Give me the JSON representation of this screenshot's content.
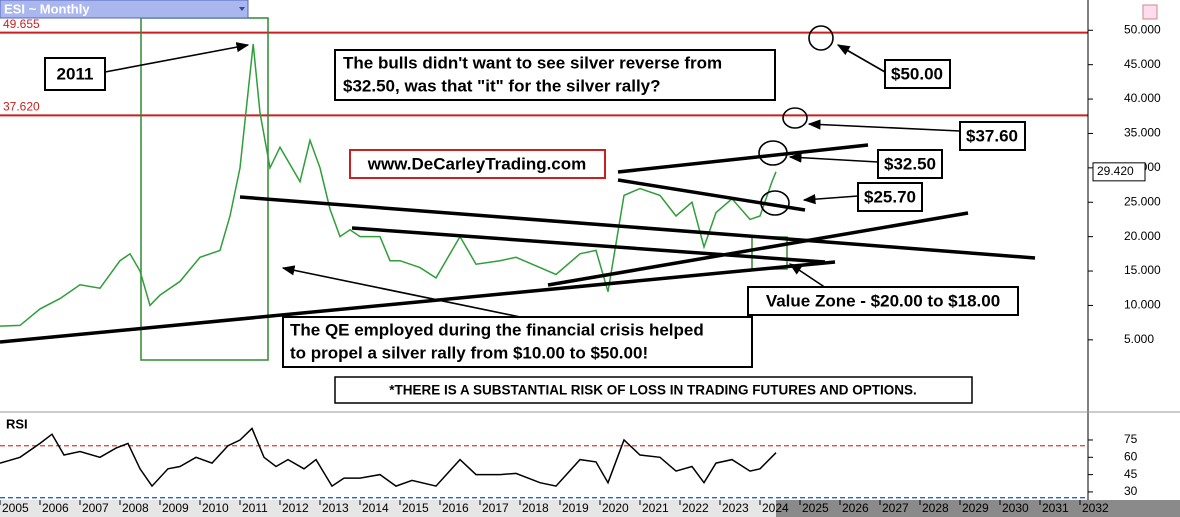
{
  "chart_data": [
    {
      "type": "line",
      "title": "ESI ~ Monthly",
      "color": "#2f9e3a",
      "x": [
        2005.0,
        2005.5,
        2006.0,
        2006.5,
        2007.0,
        2007.5,
        2008.0,
        2008.25,
        2008.5,
        2008.75,
        2009.0,
        2009.5,
        2010.0,
        2010.5,
        2010.75,
        2011.0,
        2011.33,
        2011.5,
        2011.75,
        2012.0,
        2012.5,
        2012.75,
        2013.0,
        2013.25,
        2013.5,
        2013.75,
        2014.0,
        2014.5,
        2014.75,
        2015.0,
        2015.5,
        2015.9,
        2016.5,
        2016.9,
        2017.5,
        2017.9,
        2018.5,
        2018.9,
        2019.5,
        2019.9,
        2020.2,
        2020.6,
        2021.0,
        2021.5,
        2021.9,
        2022.3,
        2022.6,
        2022.9,
        2023.3,
        2023.75,
        2024.0,
        2024.3,
        2024.4
      ],
      "values": [
        7.0,
        7.1,
        9.5,
        11.0,
        13.0,
        12.5,
        16.5,
        17.5,
        15.0,
        10.0,
        11.5,
        13.5,
        17.0,
        18.0,
        23.0,
        30.0,
        48.0,
        38.0,
        30.0,
        33.0,
        28.0,
        34.0,
        30.0,
        24.0,
        20.0,
        21.0,
        20.0,
        20.0,
        16.5,
        16.5,
        15.5,
        14.0,
        20.0,
        16.0,
        16.5,
        17.0,
        15.5,
        14.5,
        17.5,
        18.0,
        12.0,
        26.0,
        27.0,
        26.0,
        23.0,
        25.0,
        18.5,
        23.5,
        25.5,
        22.5,
        23.0,
        28.0,
        29.42
      ],
      "last_value": {
        "value": 29.42,
        "label": "29.420"
      },
      "xlim": [
        2005,
        2032.2
      ],
      "xticks": [
        2005,
        2006,
        2007,
        2008,
        2009,
        2010,
        2011,
        2012,
        2013,
        2014,
        2015,
        2016,
        2017,
        2018,
        2019,
        2020,
        2021,
        2022,
        2023,
        2024,
        2025,
        2026,
        2027,
        2028,
        2029,
        2030,
        2031,
        2032
      ],
      "ylim": [
        -5.2,
        54.4
      ],
      "yticks": [
        {
          "value": 5,
          "label": "5.000"
        },
        {
          "value": 10,
          "label": "10.000"
        },
        {
          "value": 15,
          "label": "15.000"
        },
        {
          "value": 20,
          "label": "20.000"
        },
        {
          "value": 25,
          "label": "25.000"
        },
        {
          "value": 30,
          "label": "30.000"
        },
        {
          "value": 35,
          "label": "35.000"
        },
        {
          "value": 40,
          "label": "40.000"
        },
        {
          "value": 45,
          "label": "45.000"
        },
        {
          "value": 50,
          "label": "50.000"
        }
      ],
      "levels": [
        49.655,
        {
          "value": 37.62,
          "label": "37.620"
        }
      ],
      "level_color": "#cc1f1f",
      "annotations": [
        "2011",
        [
          "The bulls didn't want to see silver reverse from",
          "$32.50, was that \"it\" for the silver rally?"
        ],
        "www.DeCarleyTrading.com",
        "$50.00",
        "$37.60",
        "$32.50",
        "$25.70",
        "Value Zone - $20.00 to $18.00",
        [
          "The QE employed during the financial crisis helped",
          "to propel a silver rally from $10.00 to $50.00!"
        ],
        "*THERE IS A SUBSTANTIAL RISK OF LOSS IN TRADING FUTURES AND OPTIONS."
      ]
    },
    {
      "type": "line",
      "title": "RSI",
      "color": "#000000",
      "x": [
        2005.0,
        2005.5,
        2006.0,
        2006.3,
        2006.6,
        2007.0,
        2007.5,
        2007.9,
        2008.2,
        2008.5,
        2008.8,
        2009.2,
        2009.5,
        2009.9,
        2010.3,
        2010.7,
        2011.0,
        2011.3,
        2011.6,
        2011.9,
        2012.2,
        2012.6,
        2012.9,
        2013.3,
        2013.6,
        2014.0,
        2014.5,
        2014.9,
        2015.3,
        2015.9,
        2016.5,
        2016.9,
        2017.5,
        2017.9,
        2018.5,
        2018.9,
        2019.5,
        2019.9,
        2020.2,
        2020.6,
        2021.0,
        2021.5,
        2021.9,
        2022.3,
        2022.6,
        2022.9,
        2023.3,
        2023.75,
        2024.0,
        2024.4
      ],
      "values": [
        55,
        60,
        72,
        80,
        62,
        65,
        60,
        68,
        72,
        50,
        35,
        50,
        52,
        60,
        55,
        70,
        75,
        85,
        60,
        52,
        58,
        50,
        58,
        35,
        42,
        42,
        45,
        35,
        40,
        35,
        58,
        45,
        45,
        46,
        38,
        35,
        58,
        56,
        38,
        75,
        62,
        60,
        48,
        52,
        38,
        55,
        58,
        48,
        50,
        64
      ],
      "xlim": [
        2005,
        2032.2
      ],
      "ylim": [
        23,
        97.5
      ],
      "yticks": [
        30,
        45,
        60,
        75
      ],
      "reference_lines": [
        {
          "value": 70,
          "color": "#e53935"
        },
        {
          "value": 25,
          "color": "#1e66d0"
        }
      ]
    }
  ]
}
